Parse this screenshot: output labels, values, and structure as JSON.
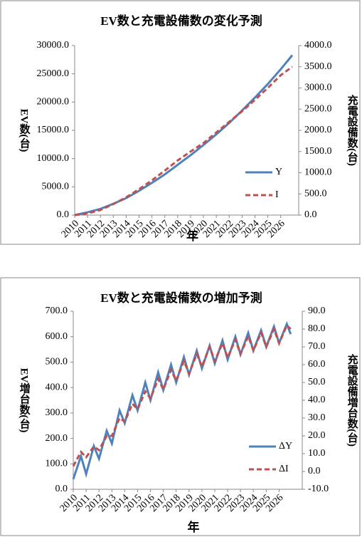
{
  "chart_data": [
    {
      "type": "line",
      "title": "EV数と充電設備数の変化予測",
      "xlabel": "年",
      "ylabel": "EV数(台)",
      "y2label": "充電設備数(台)",
      "x": [
        2010,
        2011,
        2012,
        2013,
        2014,
        2015,
        2016,
        2017,
        2018,
        2019,
        2020,
        2021,
        2022,
        2023,
        2024,
        2025,
        2026,
        2026.9
      ],
      "xlim": [
        2010,
        2027.4
      ],
      "xticks": [
        2010,
        2011,
        2012,
        2013,
        2014,
        2015,
        2016,
        2017,
        2018,
        2019,
        2020,
        2021,
        2022,
        2023,
        2024,
        2025,
        2026
      ],
      "ylim": [
        0,
        30000
      ],
      "yticks": [
        {
          "value": 0,
          "label": "0.0"
        },
        {
          "value": 5000,
          "label": "5000.0"
        },
        {
          "value": 10000,
          "label": "10000.0"
        },
        {
          "value": 15000,
          "label": "15000.0"
        },
        {
          "value": 20000,
          "label": "20000.0"
        },
        {
          "value": 25000,
          "label": "25000.0"
        },
        {
          "value": 30000,
          "label": "30000.0"
        }
      ],
      "y2lim": [
        0,
        4000
      ],
      "y2ticks": [
        {
          "value": 0,
          "label": "0.0"
        },
        {
          "value": 500,
          "label": "500.0"
        },
        {
          "value": 1000,
          "label": "1000.0"
        },
        {
          "value": 1500,
          "label": "1500.0"
        },
        {
          "value": 2000,
          "label": "2000.0"
        },
        {
          "value": 2500,
          "label": "2500.0"
        },
        {
          "value": 3000,
          "label": "3000.0"
        },
        {
          "value": 3500,
          "label": "3500.0"
        },
        {
          "value": 4000,
          "label": "4000.0"
        }
      ],
      "legend": "lower right",
      "series": [
        {
          "name": "Y",
          "color": "#4f81bd",
          "line_style": "solid",
          "values": [
            0,
            500,
            1100,
            2000,
            3000,
            4300,
            5700,
            7200,
            8900,
            10600,
            12400,
            14300,
            16300,
            18500,
            20800,
            23200,
            25800,
            28300
          ]
        },
        {
          "name": "I",
          "color": "#c0504d",
          "line_style": "dashed",
          "axis": "y2",
          "values": [
            0,
            40,
            120,
            260,
            420,
            610,
            820,
            1050,
            1290,
            1500,
            1700,
            1950,
            2200,
            2450,
            2720,
            3000,
            3300,
            3500
          ]
        }
      ]
    },
    {
      "type": "line",
      "title": "EV数と充電設備数の増加予測",
      "xlabel": "年",
      "ylabel": "EV増台数(台)",
      "y2label": "充電設備増台数(台)",
      "x": [
        2010,
        2010.6,
        2011,
        2011.6,
        2012,
        2012.6,
        2013,
        2013.6,
        2014,
        2014.6,
        2015,
        2015.6,
        2016,
        2016.6,
        2017,
        2017.6,
        2018,
        2018.6,
        2019,
        2019.6,
        2020,
        2020.6,
        2021,
        2021.6,
        2022,
        2022.6,
        2023,
        2023.6,
        2024,
        2024.6,
        2025,
        2025.6,
        2026,
        2026.6,
        2026.9
      ],
      "xlim": [
        2010,
        2027.8
      ],
      "xticks": [
        2010,
        2011,
        2012,
        2013,
        2014,
        2015,
        2016,
        2017,
        2018,
        2019,
        2020,
        2021,
        2022,
        2023,
        2024,
        2025,
        2026
      ],
      "ylim": [
        0,
        700
      ],
      "yticks": [
        {
          "value": 0,
          "label": "0.0"
        },
        {
          "value": 100,
          "label": "100.0"
        },
        {
          "value": 200,
          "label": "200.0"
        },
        {
          "value": 300,
          "label": "300.0"
        },
        {
          "value": 400,
          "label": "400.0"
        },
        {
          "value": 500,
          "label": "500.0"
        },
        {
          "value": 600,
          "label": "600.0"
        },
        {
          "value": 700,
          "label": "700.0"
        }
      ],
      "y2lim": [
        -10,
        90
      ],
      "y2ticks": [
        {
          "value": -10,
          "label": "-10.0"
        },
        {
          "value": 0,
          "label": "0.0"
        },
        {
          "value": 10,
          "label": "10.0"
        },
        {
          "value": 20,
          "label": "20.0"
        },
        {
          "value": 30,
          "label": "30.0"
        },
        {
          "value": 40,
          "label": "40.0"
        },
        {
          "value": 50,
          "label": "50.0"
        },
        {
          "value": 60,
          "label": "60.0"
        },
        {
          "value": 70,
          "label": "70.0"
        },
        {
          "value": 80,
          "label": "80.0"
        },
        {
          "value": 90,
          "label": "90.0"
        }
      ],
      "legend": "lower right",
      "series": [
        {
          "name": "ΔY",
          "color": "#4f81bd",
          "line_style": "solid",
          "values": [
            40,
            130,
            60,
            170,
            120,
            230,
            180,
            310,
            260,
            370,
            310,
            420,
            350,
            460,
            390,
            490,
            420,
            520,
            450,
            545,
            475,
            565,
            495,
            585,
            510,
            600,
            530,
            615,
            545,
            625,
            560,
            640,
            575,
            650,
            610
          ]
        },
        {
          "name": "ΔI",
          "color": "#c0504d",
          "line_style": "dashed",
          "axis": "y2",
          "values": [
            3,
            11,
            8,
            14,
            12,
            20,
            20,
            30,
            28,
            38,
            35,
            45,
            41,
            52,
            46,
            57,
            51,
            62,
            55,
            66,
            59,
            70,
            62,
            72,
            64,
            74,
            66,
            76,
            68,
            78,
            70,
            80,
            72,
            82,
            80
          ]
        }
      ]
    }
  ]
}
